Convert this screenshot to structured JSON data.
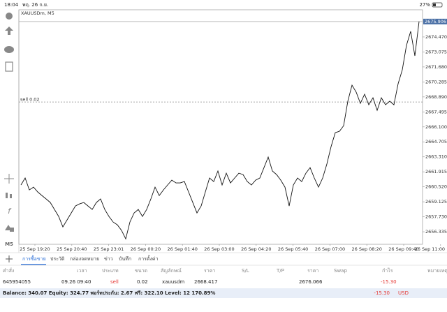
{
  "status_bar": {
    "time": "18:04",
    "date": "พฤ. 26 ก.ย.",
    "battery": "27%"
  },
  "chart": {
    "type": "line",
    "symbol": "XAUUSDm, M5",
    "order_line_label": "sell 0.02",
    "order_price": 2668.417,
    "current_price": 2675.906,
    "color": "#111111",
    "ylim": [
      2655.17,
      2677.0
    ],
    "yticks": [
      {
        "value": 2674.47,
        "label": "2674.470"
      },
      {
        "value": 2673.075,
        "label": "2673.075"
      },
      {
        "value": 2671.68,
        "label": "2671.680"
      },
      {
        "value": 2670.285,
        "label": "2670.285"
      },
      {
        "value": 2668.89,
        "label": "2668.890"
      },
      {
        "value": 2667.495,
        "label": "2667.495"
      },
      {
        "value": 2666.1,
        "label": "2666.100"
      },
      {
        "value": 2664.705,
        "label": "2664.705"
      },
      {
        "value": 2663.31,
        "label": "2663.310"
      },
      {
        "value": 2661.915,
        "label": "2661.915"
      },
      {
        "value": 2660.52,
        "label": "2660.520"
      },
      {
        "value": 2659.125,
        "label": "2659.125"
      },
      {
        "value": 2657.73,
        "label": "2657.730"
      },
      {
        "value": 2656.335,
        "label": "2656.335"
      }
    ],
    "xlabels": [
      "25 Sep 19:20",
      "25 Sep 20:40",
      "25 Sep 23:01",
      "26 Sep 00:20",
      "26 Sep 01:40",
      "26 Sep 03:00",
      "26 Sep 04:20",
      "26 Sep 05:40",
      "26 Sep 07:00",
      "26 Sep 08:20",
      "26 Sep 09:40",
      "26 Sep 11:00"
    ],
    "values": [
      2660.69,
      2661.34,
      2660.23,
      2660.49,
      2660.04,
      2659.71,
      2659.39,
      2659.06,
      2658.41,
      2657.76,
      2656.79,
      2657.44,
      2658.09,
      2658.74,
      2658.93,
      2659.06,
      2658.74,
      2658.41,
      2659.06,
      2659.39,
      2658.41,
      2657.76,
      2657.24,
      2656.98,
      2656.46,
      2655.68,
      2657.24,
      2658.09,
      2658.41,
      2657.76,
      2658.41,
      2659.39,
      2660.49,
      2659.71,
      2660.23,
      2660.69,
      2661.14,
      2660.88,
      2660.88,
      2661.01,
      2660.04,
      2659.06,
      2658.09,
      2658.74,
      2660.04,
      2661.34,
      2661.01,
      2661.99,
      2660.69,
      2661.79,
      2660.88,
      2661.34,
      2661.79,
      2661.66,
      2661.01,
      2660.69,
      2661.14,
      2661.34,
      2662.31,
      2663.29,
      2661.99,
      2661.66,
      2661.14,
      2660.49,
      2658.74,
      2660.69,
      2661.34,
      2661.01,
      2661.79,
      2662.31,
      2661.34,
      2660.49,
      2661.34,
      2662.64,
      2664.26,
      2665.56,
      2665.69,
      2666.21,
      2668.49,
      2669.98,
      2669.33,
      2668.29,
      2669.14,
      2668.16,
      2668.81,
      2667.64,
      2668.81,
      2668.16,
      2668.49,
      2668.16,
      2670.11,
      2671.41,
      2673.69,
      2674.99,
      2672.71,
      2675.91
    ]
  },
  "timeframe": "M5",
  "tabs": [
    "การซื้อขาย",
    "ประวัติ",
    "กล่องจดหมาย",
    "ข่าว",
    "บันทึก",
    "การตั้งค่า"
  ],
  "table": {
    "columns": [
      "คำสั่ง",
      "เวลา",
      "ประเภท",
      "ขนาด",
      "สัญลักษณ์",
      "ราคา",
      "S/L",
      "T/P",
      "ราคา",
      "Swap",
      "กำไร",
      "หมายเหตุ"
    ],
    "rows": [
      [
        "645954055",
        "09.26 09:40",
        "sell",
        "0.02",
        "xauusdm",
        "2668.417",
        "",
        "",
        "2676.066",
        "",
        "-15.30",
        ""
      ]
    ]
  },
  "balance": {
    "text": "Balance: 340.07 Equity: 324.77 พอร์ทประกัน: 2.67 ฟรี: 322.10 Level: 12 170.89%",
    "profit": "-15.30",
    "currency": "USD"
  }
}
